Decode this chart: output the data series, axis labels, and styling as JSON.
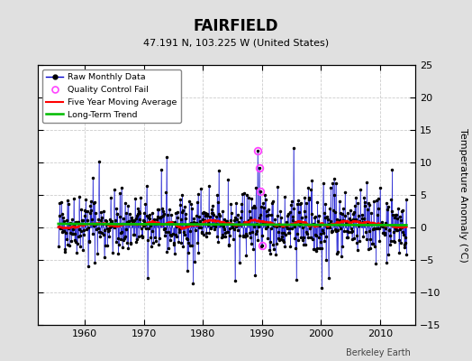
{
  "title": "FAIRFIELD",
  "subtitle": "47.191 N, 103.225 W (United States)",
  "ylabel": "Temperature Anomaly (°C)",
  "watermark": "Berkeley Earth",
  "ylim": [
    -15,
    25
  ],
  "yticks": [
    -15,
    -10,
    -5,
    0,
    5,
    10,
    15,
    20,
    25
  ],
  "xlim": [
    1952,
    2016
  ],
  "xticks": [
    1960,
    1970,
    1980,
    1990,
    2000,
    2010
  ],
  "bg_color": "#e0e0e0",
  "plot_bg_color": "#ffffff",
  "raw_color": "#0000cc",
  "moving_avg_color": "#ff0000",
  "trend_color": "#00bb00",
  "qc_fail_color": "#ff44ff",
  "seed": 42,
  "start_year": 1955.5,
  "end_year": 2014.5,
  "qc_fail_points": [
    [
      1989.25,
      11.8
    ],
    [
      1989.5,
      9.2
    ],
    [
      1989.75,
      5.5
    ],
    [
      1990.0,
      -2.8
    ]
  ]
}
